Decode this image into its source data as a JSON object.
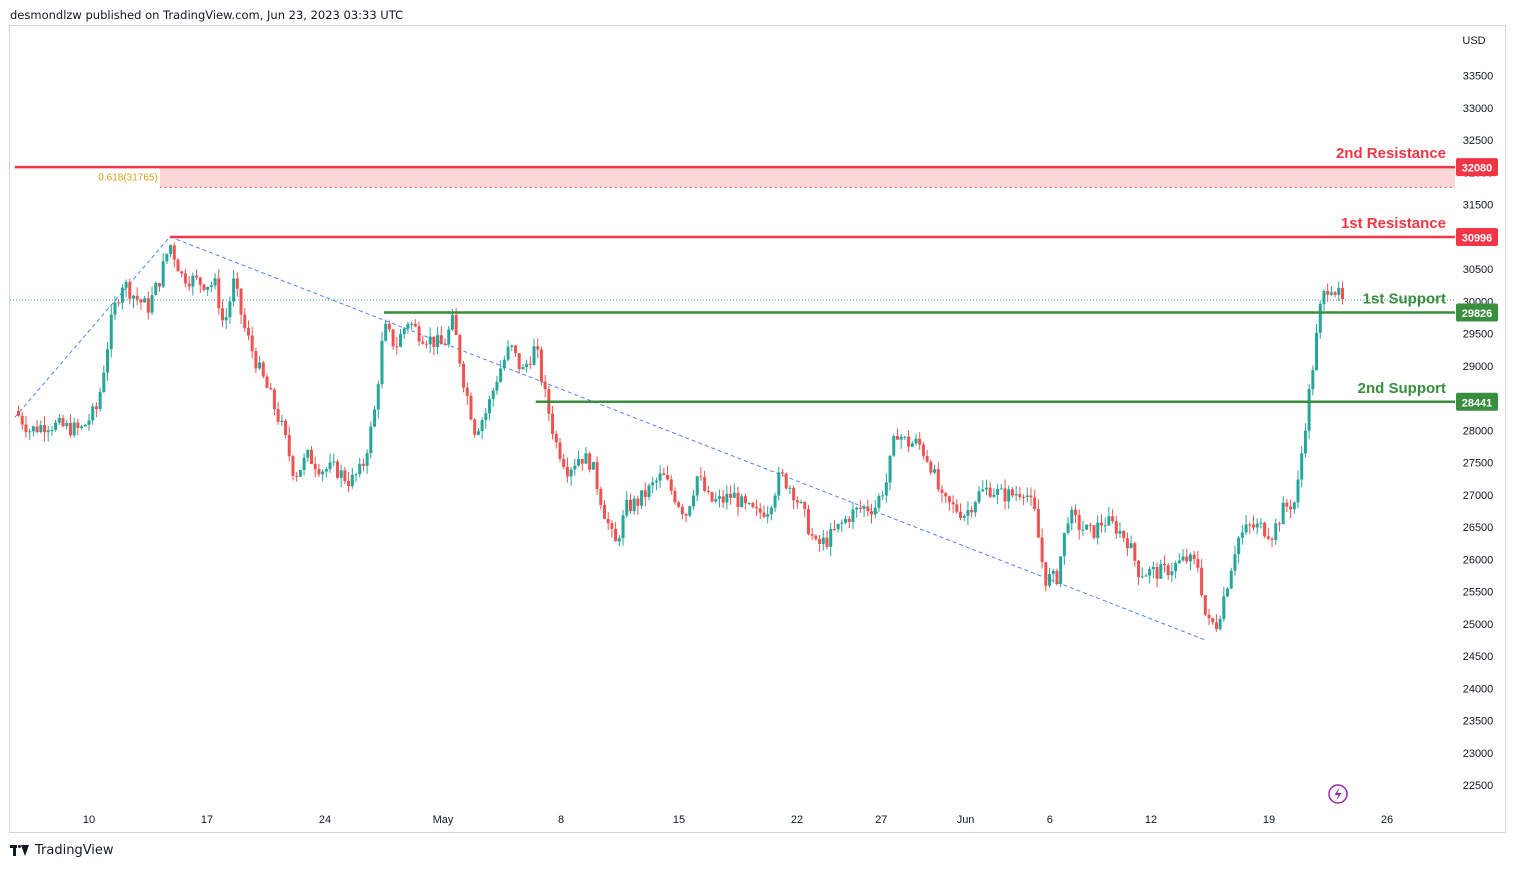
{
  "header": {
    "text": "desmondlzw published on TradingView.com, Jun 23, 2023 03:33 UTC"
  },
  "footer": {
    "brand": "TradingView"
  },
  "colors": {
    "up": "#26a69a",
    "down": "#ef5350",
    "resistance": "#f23645",
    "support": "#388e3c",
    "zone": "#fcd7d7",
    "fib": "#d4a017",
    "trend": "#2962ff",
    "axis_text": "#131722",
    "lightning": "#9c27b0"
  },
  "chart_data": {
    "type": "candlestick",
    "title": "",
    "ylabel": "USD",
    "ylim": [
      22000,
      34000
    ],
    "y_ticks": [
      22500,
      23000,
      23500,
      24000,
      24500,
      25000,
      25500,
      26000,
      26500,
      27000,
      27500,
      28000,
      28500,
      29000,
      29500,
      30000,
      30500,
      31000,
      31500,
      32000,
      32500,
      33000,
      33500
    ],
    "x_ticks": [
      "10",
      "17",
      "24",
      "May",
      "8",
      "15",
      "22",
      "27",
      "Jun",
      "6",
      "12",
      "19",
      "26"
    ],
    "x_tick_days": [
      9,
      16,
      23,
      30,
      37,
      44,
      51,
      56,
      61,
      66,
      72,
      79,
      86
    ],
    "x_range_days": [
      4.6,
      91.5
    ],
    "levels": [
      {
        "name": "2nd Resistance",
        "value": 32080,
        "label": "32080",
        "kind": "resistance",
        "start_day": 4.6
      },
      {
        "name": "1st Resistance",
        "value": 30996,
        "label": "30996",
        "kind": "resistance",
        "start_day": 13.8
      },
      {
        "name": "1st Support",
        "value": 29826,
        "label": "29826",
        "kind": "support",
        "start_day": 26.5
      },
      {
        "name": "2nd Support",
        "value": 28441,
        "label": "28441",
        "kind": "support",
        "start_day": 35.5
      }
    ],
    "zone": {
      "from": 31765,
      "to": 32080,
      "start_day": 13.2
    },
    "fib": {
      "label": "0.618(31765)",
      "value": 31765
    },
    "last_price": 30020,
    "trendlines": [
      {
        "from": {
          "day": 4.6,
          "price": 28200
        },
        "to": {
          "day": 13.8,
          "price": 31000
        }
      },
      {
        "from": {
          "day": 13.8,
          "price": 31000
        },
        "to": {
          "day": 75.2,
          "price": 24750
        }
      }
    ],
    "closes": [
      {
        "day": 4.6,
        "close": 28300
      },
      {
        "day": 5.5,
        "close": 28000
      },
      {
        "day": 6.5,
        "close": 28100
      },
      {
        "day": 7.5,
        "close": 28050
      },
      {
        "day": 8.5,
        "close": 28000
      },
      {
        "day": 9.5,
        "close": 28350
      },
      {
        "day": 10.4,
        "close": 29800
      },
      {
        "day": 11.0,
        "close": 30300
      },
      {
        "day": 11.8,
        "close": 30050
      },
      {
        "day": 12.5,
        "close": 29900
      },
      {
        "day": 13.2,
        "close": 30350
      },
      {
        "day": 13.8,
        "close": 30900
      },
      {
        "day": 14.5,
        "close": 30400
      },
      {
        "day": 15.5,
        "close": 30300
      },
      {
        "day": 16.5,
        "close": 30250
      },
      {
        "day": 17.0,
        "close": 29600
      },
      {
        "day": 17.6,
        "close": 30300
      },
      {
        "day": 18.2,
        "close": 29600
      },
      {
        "day": 19.0,
        "close": 29000
      },
      {
        "day": 19.8,
        "close": 28500
      },
      {
        "day": 20.5,
        "close": 28000
      },
      {
        "day": 21.2,
        "close": 27300
      },
      {
        "day": 22.0,
        "close": 27600
      },
      {
        "day": 22.8,
        "close": 27400
      },
      {
        "day": 23.6,
        "close": 27400
      },
      {
        "day": 24.5,
        "close": 27200
      },
      {
        "day": 25.2,
        "close": 27400
      },
      {
        "day": 25.9,
        "close": 28200
      },
      {
        "day": 26.5,
        "close": 29600
      },
      {
        "day": 27.2,
        "close": 29300
      },
      {
        "day": 27.9,
        "close": 29700
      },
      {
        "day": 28.6,
        "close": 29500
      },
      {
        "day": 29.3,
        "close": 29400
      },
      {
        "day": 30.0,
        "close": 29300
      },
      {
        "day": 30.6,
        "close": 29700
      },
      {
        "day": 31.2,
        "close": 28800
      },
      {
        "day": 31.9,
        "close": 28000
      },
      {
        "day": 32.6,
        "close": 28300
      },
      {
        "day": 33.3,
        "close": 28900
      },
      {
        "day": 34.0,
        "close": 29300
      },
      {
        "day": 34.7,
        "close": 28900
      },
      {
        "day": 35.5,
        "close": 29300
      },
      {
        "day": 36.0,
        "close": 28600
      },
      {
        "day": 36.7,
        "close": 27800
      },
      {
        "day": 37.4,
        "close": 27400
      },
      {
        "day": 38.1,
        "close": 27600
      },
      {
        "day": 38.8,
        "close": 27500
      },
      {
        "day": 39.5,
        "close": 26800
      },
      {
        "day": 40.2,
        "close": 26200
      },
      {
        "day": 40.9,
        "close": 26800
      },
      {
        "day": 41.6,
        "close": 26900
      },
      {
        "day": 42.3,
        "close": 27100
      },
      {
        "day": 43.0,
        "close": 27300
      },
      {
        "day": 43.7,
        "close": 27000
      },
      {
        "day": 44.4,
        "close": 26700
      },
      {
        "day": 45.1,
        "close": 27300
      },
      {
        "day": 45.8,
        "close": 26900
      },
      {
        "day": 46.5,
        "close": 26900
      },
      {
        "day": 47.2,
        "close": 27000
      },
      {
        "day": 47.9,
        "close": 26800
      },
      {
        "day": 48.6,
        "close": 26700
      },
      {
        "day": 49.3,
        "close": 26800
      },
      {
        "day": 50.0,
        "close": 27300
      },
      {
        "day": 50.7,
        "close": 27100
      },
      {
        "day": 51.4,
        "close": 26700
      },
      {
        "day": 52.1,
        "close": 26200
      },
      {
        "day": 52.8,
        "close": 26300
      },
      {
        "day": 53.5,
        "close": 26500
      },
      {
        "day": 54.2,
        "close": 26700
      },
      {
        "day": 54.9,
        "close": 26800
      },
      {
        "day": 55.6,
        "close": 26800
      },
      {
        "day": 56.3,
        "close": 27200
      },
      {
        "day": 56.9,
        "close": 28000
      },
      {
        "day": 57.5,
        "close": 27800
      },
      {
        "day": 58.2,
        "close": 27800
      },
      {
        "day": 58.9,
        "close": 27500
      },
      {
        "day": 59.6,
        "close": 26900
      },
      {
        "day": 60.3,
        "close": 26800
      },
      {
        "day": 61.0,
        "close": 26700
      },
      {
        "day": 61.7,
        "close": 27000
      },
      {
        "day": 62.4,
        "close": 27100
      },
      {
        "day": 63.1,
        "close": 27000
      },
      {
        "day": 63.8,
        "close": 27000
      },
      {
        "day": 64.5,
        "close": 27100
      },
      {
        "day": 65.1,
        "close": 26700
      },
      {
        "day": 65.7,
        "close": 25700
      },
      {
        "day": 66.4,
        "close": 25700
      },
      {
        "day": 67.1,
        "close": 26700
      },
      {
        "day": 67.8,
        "close": 26500
      },
      {
        "day": 68.5,
        "close": 26400
      },
      {
        "day": 69.2,
        "close": 26600
      },
      {
        "day": 69.9,
        "close": 26500
      },
      {
        "day": 70.6,
        "close": 26300
      },
      {
        "day": 71.3,
        "close": 25800
      },
      {
        "day": 72.0,
        "close": 25800
      },
      {
        "day": 72.7,
        "close": 25800
      },
      {
        "day": 73.4,
        "close": 25900
      },
      {
        "day": 74.1,
        "close": 26000
      },
      {
        "day": 74.8,
        "close": 25900
      },
      {
        "day": 75.3,
        "close": 25000
      },
      {
        "day": 75.9,
        "close": 25000
      },
      {
        "day": 76.5,
        "close": 25600
      },
      {
        "day": 77.1,
        "close": 26300
      },
      {
        "day": 77.8,
        "close": 26500
      },
      {
        "day": 78.5,
        "close": 26500
      },
      {
        "day": 79.2,
        "close": 26400
      },
      {
        "day": 79.9,
        "close": 26800
      },
      {
        "day": 80.6,
        "close": 26900
      },
      {
        "day": 81.1,
        "close": 28000
      },
      {
        "day": 81.6,
        "close": 29000
      },
      {
        "day": 82.1,
        "close": 30000
      },
      {
        "day": 82.6,
        "close": 30300
      },
      {
        "day": 83.1,
        "close": 30100
      },
      {
        "day": 83.5,
        "close": 29900
      }
    ]
  }
}
